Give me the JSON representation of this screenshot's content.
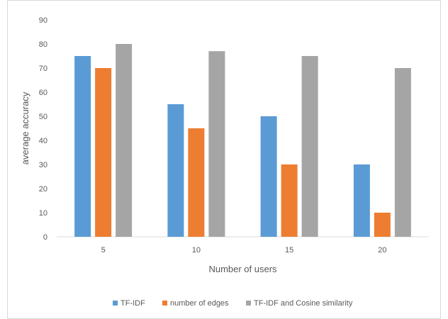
{
  "chart_data": {
    "type": "bar",
    "title": "",
    "xlabel": "Number of users",
    "ylabel": "average accuracy",
    "categories": [
      "5",
      "10",
      "15",
      "20"
    ],
    "ylim": [
      0,
      90
    ],
    "yticks": [
      0,
      10,
      20,
      30,
      40,
      50,
      60,
      70,
      80,
      90
    ],
    "grid": false,
    "legend_position": "bottom",
    "series": [
      {
        "name": "TF-IDF",
        "color": "#5b9bd5",
        "values": [
          75,
          55,
          50,
          30
        ]
      },
      {
        "name": "number of edges",
        "color": "#ed7d31",
        "values": [
          70,
          45,
          30,
          10
        ]
      },
      {
        "name": "TF-IDF and Cosine similarity",
        "color": "#a5a5a5",
        "values": [
          80,
          77,
          75,
          70
        ]
      }
    ]
  }
}
